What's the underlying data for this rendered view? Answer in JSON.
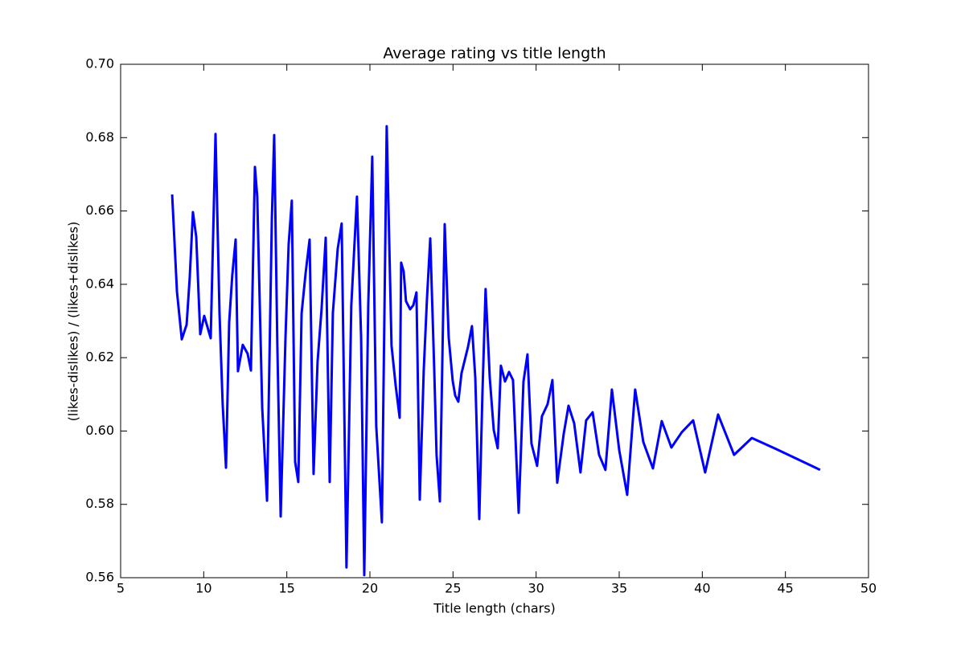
{
  "chart_data": {
    "type": "line",
    "title": "Average rating vs title length",
    "xlabel": "Title length (chars)",
    "ylabel": "(likes-dislikes) / (likes+dislikes)",
    "color": "#0000ff",
    "xlim": [
      5,
      50
    ],
    "xticks": [
      5,
      10,
      15,
      20,
      25,
      30,
      35,
      40,
      45,
      50
    ],
    "ylim": [
      0.56,
      0.7
    ],
    "yticks": [
      0.56,
      0.58,
      {
        "value": 0.6,
        "label": "0.60"
      },
      0.62,
      0.64,
      0.66,
      0.68,
      {
        "value": 0.7,
        "label": "0.70"
      }
    ],
    "x": [
      8.1,
      8.39,
      8.68,
      8.97,
      9.16,
      9.35,
      9.55,
      9.79,
      10.03,
      10.42,
      10.71,
      10.95,
      11.14,
      11.34,
      11.53,
      11.72,
      11.92,
      12.06,
      12.35,
      12.64,
      12.84,
      13.08,
      13.22,
      13.52,
      13.81,
      14.1,
      14.24,
      14.43,
      14.63,
      14.92,
      15.11,
      15.3,
      15.5,
      15.69,
      15.89,
      16.13,
      16.37,
      16.61,
      16.85,
      17.09,
      17.34,
      17.58,
      17.77,
      18.06,
      18.3,
      18.59,
      18.88,
      19.22,
      19.47,
      19.66,
      19.9,
      20.14,
      20.38,
      20.72,
      21.01,
      21.3,
      21.55,
      21.79,
      21.88,
      22.03,
      22.17,
      22.42,
      22.61,
      22.8,
      23.0,
      23.24,
      23.43,
      23.63,
      23.87,
      24.01,
      24.21,
      24.5,
      24.74,
      24.98,
      25.13,
      25.32,
      25.51,
      25.9,
      26.14,
      26.34,
      26.58,
      26.77,
      26.96,
      27.21,
      27.45,
      27.69,
      27.88,
      28.13,
      28.37,
      28.61,
      28.95,
      29.24,
      29.48,
      29.72,
      30.06,
      30.35,
      30.69,
      30.98,
      31.27,
      31.66,
      31.95,
      32.29,
      32.67,
      33.01,
      33.4,
      33.79,
      34.17,
      34.56,
      35.0,
      35.48,
      35.96,
      36.45,
      37.03,
      37.56,
      38.14,
      38.77,
      39.45,
      40.17,
      40.95,
      41.91,
      42.98,
      44.43,
      47.09
    ],
    "values": [
      0.6645,
      0.638,
      0.625,
      0.629,
      0.642,
      0.6597,
      0.6529,
      0.6264,
      0.6314,
      0.6253,
      0.681,
      0.6321,
      0.6073,
      0.59,
      0.6295,
      0.6426,
      0.6522,
      0.6163,
      0.6235,
      0.6211,
      0.6165,
      0.672,
      0.6639,
      0.6062,
      0.581,
      0.658,
      0.6807,
      0.6233,
      0.5767,
      0.6255,
      0.6509,
      0.6628,
      0.5916,
      0.5861,
      0.6321,
      0.643,
      0.6522,
      0.5883,
      0.6189,
      0.6332,
      0.6527,
      0.5861,
      0.6321,
      0.6496,
      0.6566,
      0.5628,
      0.6343,
      0.6639,
      0.6255,
      0.5607,
      0.6343,
      0.6748,
      0.6014,
      0.5751,
      0.6831,
      0.6233,
      0.6124,
      0.6036,
      0.6459,
      0.6435,
      0.6354,
      0.6332,
      0.6343,
      0.6378,
      0.5813,
      0.6167,
      0.6358,
      0.6525,
      0.6167,
      0.5935,
      0.5808,
      0.6564,
      0.6255,
      0.6137,
      0.6097,
      0.608,
      0.6157,
      0.6229,
      0.6286,
      0.6146,
      0.576,
      0.6102,
      0.6387,
      0.6146,
      0.6003,
      0.5953,
      0.6178,
      0.6135,
      0.6161,
      0.6139,
      0.5777,
      0.6135,
      0.6209,
      0.5966,
      0.5905,
      0.604,
      0.6073,
      0.6139,
      0.5859,
      0.5992,
      0.6069,
      0.6021,
      0.5887,
      0.6029,
      0.6051,
      0.5935,
      0.5894,
      0.6113,
      0.5948,
      0.5826,
      0.6113,
      0.597,
      0.5898,
      0.6027,
      0.5955,
      0.5997,
      0.6029,
      0.5887,
      0.6045,
      0.5935,
      0.5981,
      0.5951,
      0.5894
    ]
  }
}
